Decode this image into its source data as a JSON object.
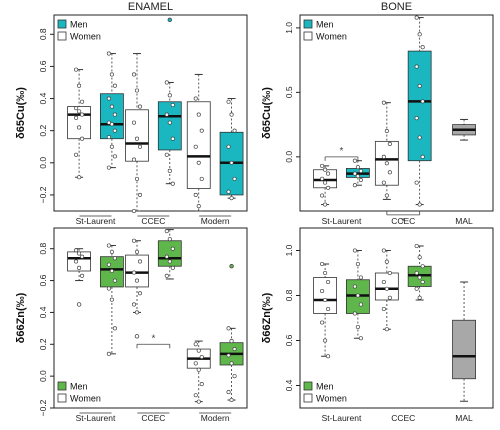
{
  "chart_data": [
    {
      "type": "boxplot",
      "title": "ENAMEL",
      "ylabel": "δ65Cu(‰)",
      "ylim": [
        -0.3,
        0.92
      ],
      "yticks": [
        -0.2,
        0.0,
        0.2,
        0.4,
        0.6,
        0.8
      ],
      "categories": [
        "St-Laurent",
        "CCEC",
        "Modern"
      ],
      "legend": [
        {
          "label": "Men",
          "color": "#1ab7c1"
        },
        {
          "label": "Women",
          "color": "#ffffff"
        }
      ],
      "legend_position": "top-left",
      "groups": [
        {
          "category": "St-Laurent",
          "series": "Women",
          "color": "#ffffff",
          "min": -0.09,
          "q1": 0.15,
          "median": 0.3,
          "q3": 0.35,
          "max": 0.58,
          "points": [
            0.58,
            0.48,
            0.38,
            0.34,
            0.32,
            0.3,
            0.28,
            0.22,
            0.15,
            0.05,
            -0.09
          ]
        },
        {
          "category": "St-Laurent",
          "series": "Men",
          "color": "#1ab7c1",
          "min": -0.03,
          "q1": 0.15,
          "median": 0.24,
          "q3": 0.43,
          "max": 0.68,
          "points": [
            0.68,
            0.55,
            0.48,
            0.4,
            0.35,
            0.3,
            0.25,
            0.24,
            0.2,
            0.16,
            0.1,
            0.04,
            -0.03
          ]
        },
        {
          "category": "CCEC",
          "series": "Women",
          "color": "#ffffff",
          "min": -0.3,
          "q1": 0.01,
          "median": 0.12,
          "q3": 0.33,
          "max": 0.68,
          "points": [
            0.55,
            0.45,
            0.35,
            0.25,
            0.15,
            0.1,
            0.02,
            -0.1,
            -0.2,
            -0.3
          ]
        },
        {
          "category": "CCEC",
          "series": "Men",
          "color": "#1ab7c1",
          "min": -0.13,
          "q1": 0.08,
          "median": 0.29,
          "q3": 0.38,
          "max": 0.5,
          "outliers": [
            0.89
          ],
          "points": [
            0.5,
            0.42,
            0.36,
            0.3,
            0.25,
            0.15,
            0.05,
            -0.05,
            -0.13
          ]
        },
        {
          "category": "Modern",
          "series": "Women",
          "color": "#ffffff",
          "min": -0.3,
          "q1": -0.16,
          "median": 0.04,
          "q3": 0.38,
          "max": 0.55,
          "points": [
            0.4,
            0.3,
            0.2,
            0.1,
            0.0,
            -0.1,
            -0.2,
            -0.27
          ]
        },
        {
          "category": "Modern",
          "series": "Men",
          "color": "#1ab7c1",
          "min": -0.22,
          "q1": -0.2,
          "median": 0.0,
          "q3": 0.19,
          "max": 0.4,
          "points": [
            0.38,
            0.3,
            0.2,
            0.1,
            0.0,
            -0.1,
            -0.18,
            -0.22
          ]
        }
      ],
      "annotations": []
    },
    {
      "type": "boxplot",
      "title": "BONE",
      "ylabel": "δ65Cu(‰)",
      "ylim": [
        -0.42,
        1.1
      ],
      "yticks": [
        0.0,
        0.5,
        1.0
      ],
      "categories": [
        "St-Laurent",
        "CCEC",
        "MAL"
      ],
      "legend": [
        {
          "label": "Men",
          "color": "#1ab7c1"
        },
        {
          "label": "Women",
          "color": "#ffffff"
        }
      ],
      "legend_position": "top-left",
      "groups": [
        {
          "category": "St-Laurent",
          "series": "Women",
          "color": "#ffffff",
          "min": -0.37,
          "q1": -0.24,
          "median": -0.18,
          "q3": -0.1,
          "max": -0.07,
          "points": [
            -0.07,
            -0.1,
            -0.13,
            -0.17,
            -0.2,
            -0.24,
            -0.3,
            -0.37
          ]
        },
        {
          "category": "St-Laurent",
          "series": "Men",
          "color": "#1ab7c1",
          "min": -0.22,
          "q1": -0.16,
          "median": -0.13,
          "q3": -0.09,
          "max": -0.03,
          "points": [
            -0.03,
            -0.08,
            -0.11,
            -0.13,
            -0.15,
            -0.18,
            -0.22
          ]
        },
        {
          "category": "CCEC",
          "series": "Women",
          "color": "#ffffff",
          "min": -0.33,
          "q1": -0.22,
          "median": -0.02,
          "q3": 0.12,
          "max": 0.42,
          "points": [
            0.42,
            0.2,
            0.1,
            0.0,
            -0.05,
            -0.12,
            -0.2,
            -0.3
          ]
        },
        {
          "category": "CCEC",
          "series": "Men",
          "color": "#1ab7c1",
          "min": -0.37,
          "q1": -0.03,
          "median": 0.43,
          "q3": 0.82,
          "max": 1.08,
          "points": [
            1.08,
            0.95,
            0.85,
            0.7,
            0.55,
            0.43,
            0.3,
            0.15,
            0.0,
            -0.2,
            -0.37
          ]
        },
        {
          "category": "MAL",
          "series": "All",
          "color": "#a8a8a8",
          "min": 0.13,
          "q1": 0.17,
          "median": 0.21,
          "q3": 0.25,
          "max": 0.29,
          "points": []
        }
      ],
      "annotations": [
        {
          "text": "*",
          "between": [
            "St-Laurent:Women",
            "St-Laurent:Men"
          ],
          "y": 0.0
        },
        {
          "text": "*",
          "between": [
            "CCEC:Women",
            "CCEC:Men"
          ],
          "y": -0.45
        }
      ]
    },
    {
      "type": "boxplot",
      "title": "",
      "ylabel": "δ66Zn(‰)",
      "ylim": [
        -0.2,
        0.93
      ],
      "yticks": [
        -0.2,
        0.0,
        0.2,
        0.4,
        0.6,
        0.8
      ],
      "categories": [
        "St-Laurent",
        "CCEC",
        "Modern"
      ],
      "legend": [
        {
          "label": "Men",
          "color": "#5fb74c"
        },
        {
          "label": "Women",
          "color": "#ffffff"
        }
      ],
      "legend_position": "bottom-left",
      "groups": [
        {
          "category": "St-Laurent",
          "series": "Women",
          "color": "#ffffff",
          "min": 0.6,
          "q1": 0.66,
          "median": 0.74,
          "q3": 0.78,
          "max": 0.8,
          "outliers": [
            0.45
          ],
          "points": [
            0.79,
            0.77,
            0.75,
            0.72,
            0.68,
            0.63
          ]
        },
        {
          "category": "St-Laurent",
          "series": "Men",
          "color": "#5fb74c",
          "min": 0.14,
          "q1": 0.56,
          "median": 0.67,
          "q3": 0.75,
          "max": 0.82,
          "points": [
            0.82,
            0.78,
            0.74,
            0.7,
            0.66,
            0.6,
            0.55,
            0.48,
            0.3,
            0.14
          ]
        },
        {
          "category": "CCEC",
          "series": "Women",
          "color": "#ffffff",
          "min": 0.4,
          "q1": 0.56,
          "median": 0.65,
          "q3": 0.76,
          "max": 0.85,
          "outliers": [
            0.25
          ],
          "points": [
            0.85,
            0.78,
            0.72,
            0.65,
            0.6,
            0.52,
            0.45,
            0.4
          ]
        },
        {
          "category": "CCEC",
          "series": "Men",
          "color": "#5fb74c",
          "min": 0.61,
          "q1": 0.69,
          "median": 0.74,
          "q3": 0.85,
          "max": 0.92,
          "points": [
            0.91,
            0.86,
            0.8,
            0.75,
            0.72,
            0.68,
            0.63
          ]
        },
        {
          "category": "Modern",
          "series": "Women",
          "color": "#ffffff",
          "min": -0.16,
          "q1": 0.05,
          "median": 0.11,
          "q3": 0.17,
          "max": 0.22,
          "points": [
            0.2,
            0.16,
            0.12,
            0.08,
            0.04,
            -0.05,
            -0.12,
            -0.16
          ]
        },
        {
          "category": "Modern",
          "series": "Men",
          "color": "#5fb74c",
          "min": -0.15,
          "q1": 0.07,
          "median": 0.14,
          "q3": 0.21,
          "max": 0.3,
          "outliers": [
            0.69
          ],
          "points": [
            0.3,
            0.22,
            0.17,
            0.13,
            0.08,
            0.0,
            -0.1,
            -0.15
          ]
        }
      ],
      "annotations": [
        {
          "text": "*",
          "between": [
            "CCEC:Women",
            "CCEC:Men"
          ],
          "y": 0.2
        }
      ]
    },
    {
      "type": "boxplot",
      "title": "",
      "ylabel": "δ66Zn(‰)",
      "ylim": [
        0.3,
        1.1
      ],
      "yticks": [
        0.4,
        0.6,
        0.8,
        1.0
      ],
      "categories": [
        "St-Laurent",
        "CCEC",
        "MAL"
      ],
      "legend": [
        {
          "label": "Men",
          "color": "#5fb74c"
        },
        {
          "label": "Women",
          "color": "#ffffff"
        }
      ],
      "legend_position": "bottom-left",
      "groups": [
        {
          "category": "St-Laurent",
          "series": "Women",
          "color": "#ffffff",
          "min": 0.53,
          "q1": 0.72,
          "median": 0.78,
          "q3": 0.88,
          "max": 0.94,
          "points": [
            0.94,
            0.9,
            0.86,
            0.82,
            0.78,
            0.74,
            0.68,
            0.6,
            0.53
          ]
        },
        {
          "category": "St-Laurent",
          "series": "Men",
          "color": "#5fb74c",
          "min": 0.61,
          "q1": 0.72,
          "median": 0.8,
          "q3": 0.87,
          "max": 1.0,
          "points": [
            1.0,
            0.94,
            0.88,
            0.84,
            0.8,
            0.76,
            0.72,
            0.66,
            0.61
          ]
        },
        {
          "category": "CCEC",
          "series": "Women",
          "color": "#ffffff",
          "min": 0.65,
          "q1": 0.78,
          "median": 0.83,
          "q3": 0.9,
          "max": 1.0,
          "points": [
            1.0,
            0.95,
            0.9,
            0.86,
            0.83,
            0.79,
            0.74,
            0.65
          ]
        },
        {
          "category": "CCEC",
          "series": "Men",
          "color": "#5fb74c",
          "min": 0.78,
          "q1": 0.84,
          "median": 0.89,
          "q3": 0.93,
          "max": 1.02,
          "points": [
            1.02,
            0.97,
            0.93,
            0.9,
            0.88,
            0.86,
            0.83,
            0.79
          ]
        },
        {
          "category": "MAL",
          "series": "All",
          "color": "#a8a8a8",
          "min": 0.33,
          "q1": 0.43,
          "median": 0.53,
          "q3": 0.69,
          "max": 0.86,
          "points": []
        }
      ],
      "annotations": []
    }
  ]
}
